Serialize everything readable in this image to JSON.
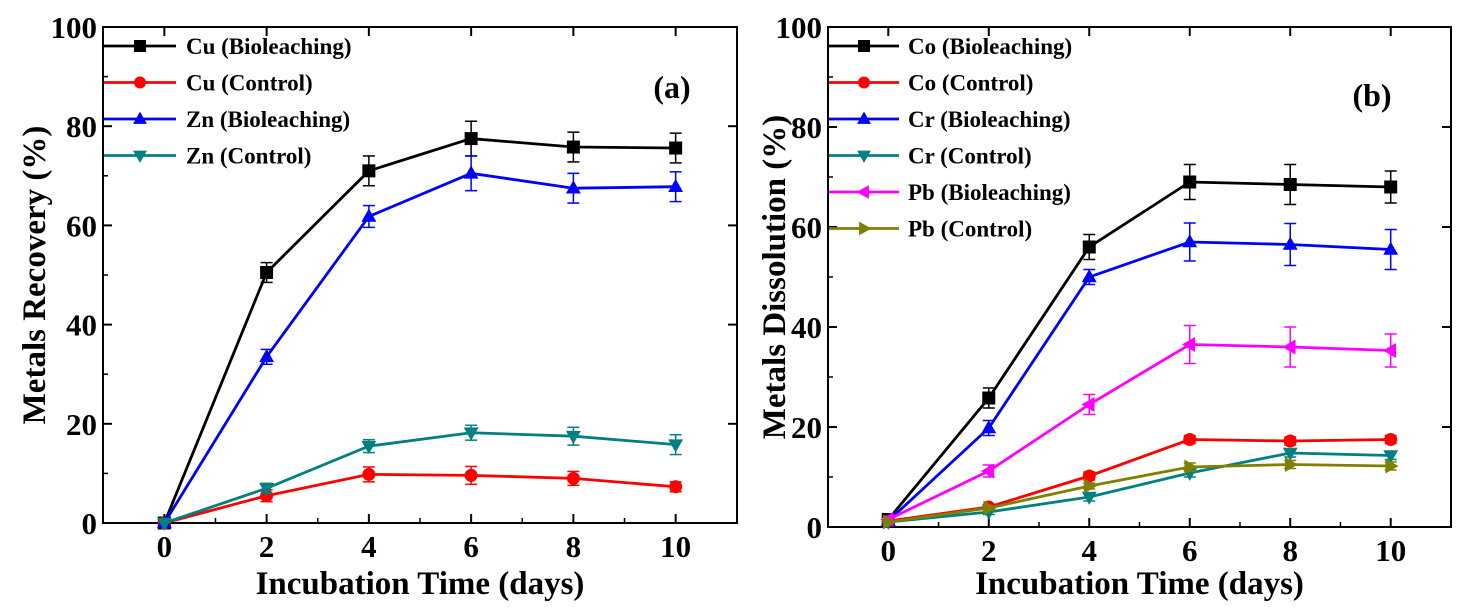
{
  "chart_data": [
    {
      "type": "line",
      "panel_label": "(a)",
      "xlabel": "Incubation Time (days)",
      "ylabel": "Metals Recovery (%)",
      "xlim": [
        -1.2,
        11.2
      ],
      "ylim": [
        0,
        100
      ],
      "x_ticks": [
        0,
        2,
        4,
        6,
        8,
        10
      ],
      "y_ticks": [
        0,
        20,
        40,
        60,
        80,
        100
      ],
      "legend_position": "top-left",
      "x": [
        0,
        2,
        4,
        6,
        8,
        10
      ],
      "series": [
        {
          "name": "Cu (Bioleaching)",
          "color": "#000000",
          "marker": "square",
          "values": [
            0,
            50.5,
            71,
            77.5,
            75.8,
            75.6
          ],
          "errors": [
            0,
            2,
            3,
            3.5,
            3,
            3
          ]
        },
        {
          "name": "Cu (Control)",
          "color": "#ff0000",
          "marker": "circle",
          "values": [
            0,
            5.5,
            9.8,
            9.6,
            9,
            7.3
          ],
          "errors": [
            0,
            1.2,
            1.5,
            1.8,
            1.4,
            1
          ]
        },
        {
          "name": "Zn (Bioleaching)",
          "color": "#0000ff",
          "marker": "triangle-up",
          "values": [
            0,
            33.5,
            61.8,
            70.5,
            67.5,
            67.8
          ],
          "errors": [
            0,
            1.5,
            2.2,
            3.5,
            3,
            3
          ]
        },
        {
          "name": "Zn (Control)",
          "color": "#008080",
          "marker": "triangle-down",
          "values": [
            0,
            7,
            15.5,
            18.2,
            17.5,
            15.8
          ],
          "errors": [
            0,
            1,
            1.3,
            1.5,
            1.8,
            2
          ]
        }
      ]
    },
    {
      "type": "line",
      "panel_label": "(b)",
      "xlabel": "Incubation Time (days)",
      "ylabel": "Metals Dissolution (%)",
      "xlim": [
        -1.2,
        11.2
      ],
      "ylim": [
        0,
        100
      ],
      "x_ticks": [
        0,
        2,
        4,
        6,
        8,
        10
      ],
      "y_ticks": [
        0,
        20,
        40,
        60,
        80,
        100
      ],
      "legend_position": "top-left",
      "x": [
        0,
        2,
        4,
        6,
        8,
        10
      ],
      "series": [
        {
          "name": "Co (Bioleaching)",
          "color": "#000000",
          "marker": "square",
          "values": [
            1.5,
            25.8,
            56,
            69,
            68.5,
            68
          ],
          "errors": [
            0,
            2,
            2.5,
            3.5,
            4,
            3.2
          ]
        },
        {
          "name": "Co (Control)",
          "color": "#ff0000",
          "marker": "circle",
          "values": [
            1.2,
            4,
            10.2,
            17.5,
            17.2,
            17.5
          ],
          "errors": [
            0,
            0.5,
            0.8,
            0.8,
            0.8,
            0.8
          ]
        },
        {
          "name": "Cr (Bioleaching)",
          "color": "#0000ff",
          "marker": "triangle-up",
          "values": [
            1.2,
            19.8,
            50,
            57,
            56.5,
            55.5
          ],
          "errors": [
            0,
            1.5,
            1.5,
            3.8,
            4.2,
            4
          ]
        },
        {
          "name": "Cr (Control)",
          "color": "#008080",
          "marker": "triangle-down",
          "values": [
            1,
            3,
            6,
            10.8,
            14.8,
            14.3
          ],
          "errors": [
            0,
            0.5,
            0.8,
            0.8,
            0.8,
            0.8
          ]
        },
        {
          "name": "Pb (Bioleaching)",
          "color": "#ff00ff",
          "marker": "triangle-left",
          "values": [
            1.5,
            11.2,
            24.5,
            36.5,
            36,
            35.3
          ],
          "errors": [
            0,
            1.2,
            2,
            3.8,
            4,
            3.3
          ]
        },
        {
          "name": "Pb (Control)",
          "color": "#808000",
          "marker": "triangle-right",
          "values": [
            1,
            3.8,
            8.2,
            12,
            12.5,
            12.2
          ],
          "errors": [
            0,
            0.4,
            0.6,
            0.8,
            0.8,
            0.8
          ]
        }
      ]
    }
  ]
}
